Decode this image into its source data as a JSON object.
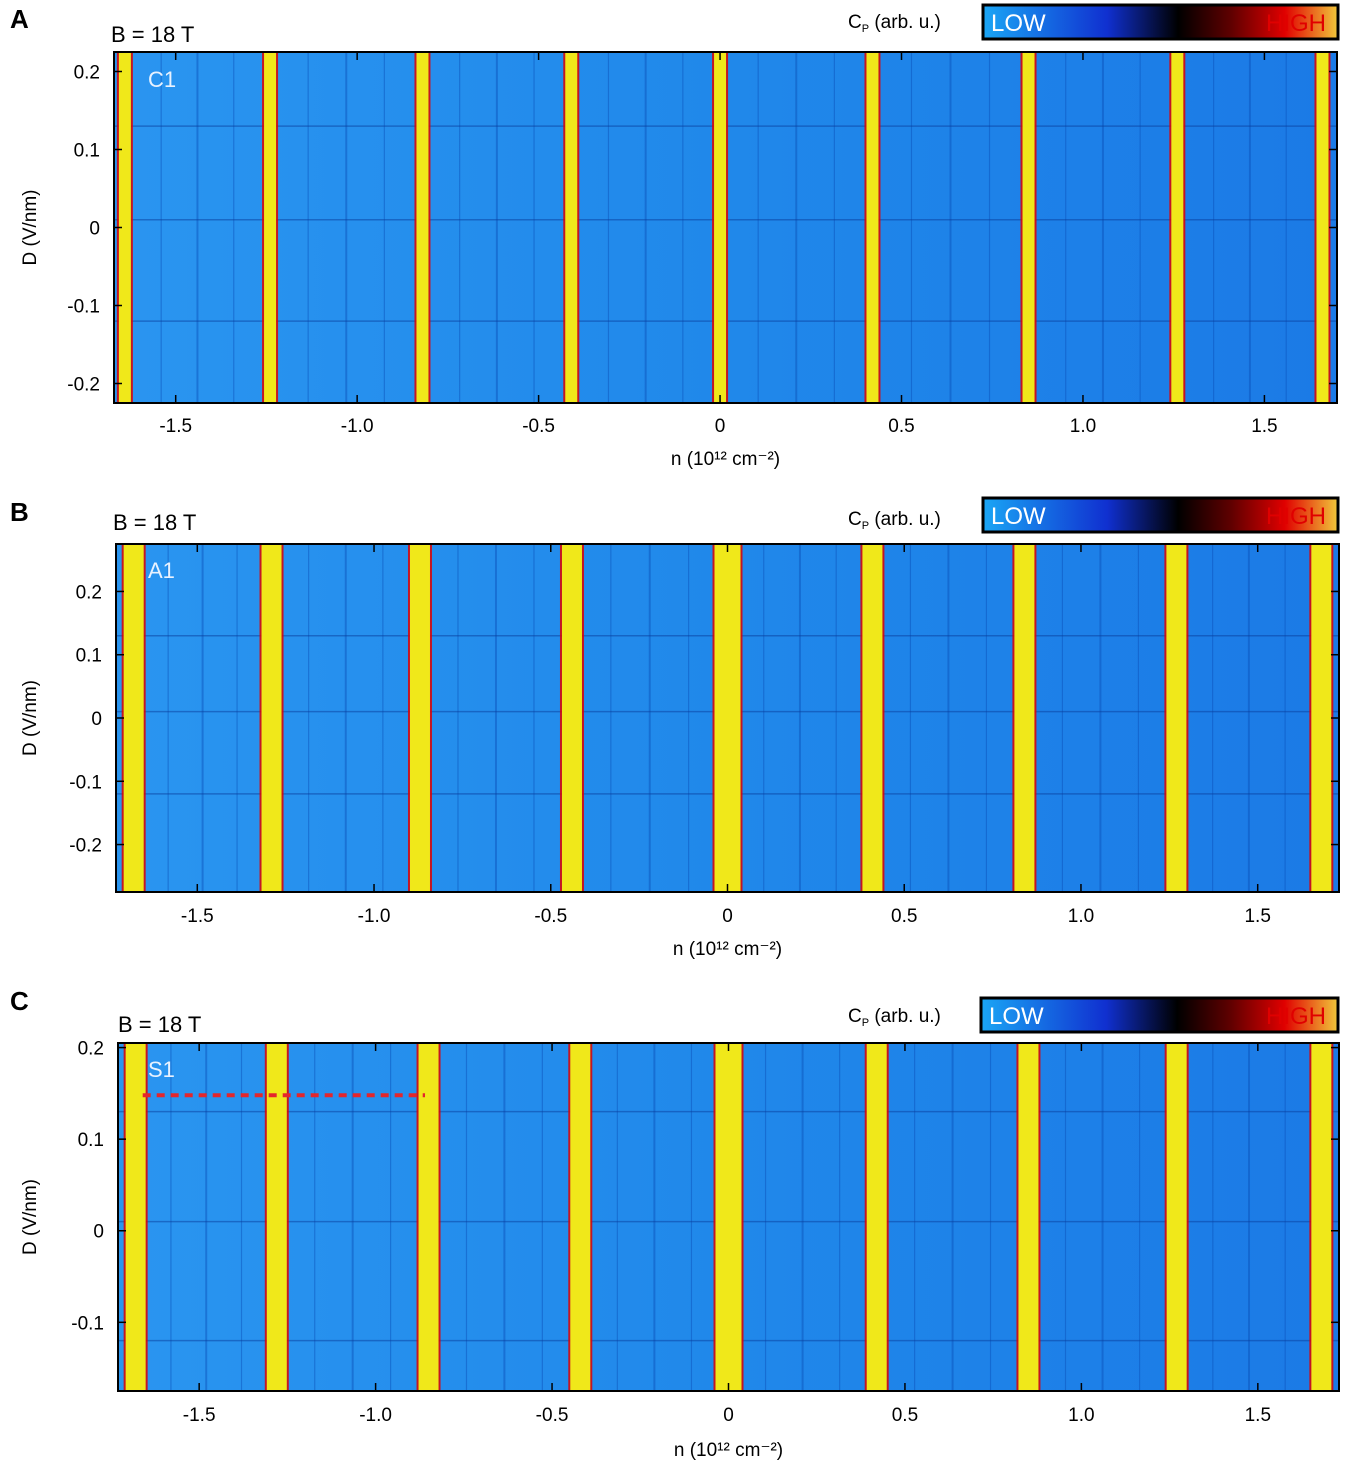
{
  "colors": {
    "background": "#1a7fe8",
    "low": "#1aa6f5",
    "mid": "#000000",
    "red": "#e00000",
    "high": "#f0e81a",
    "marker": "#e4262c"
  },
  "chart_data": [
    {
      "type": "heatmap",
      "panel_label": "A",
      "field_label": "B = 18 T",
      "sample_label": "C1",
      "colorbar": {
        "label_main": "C",
        "label_sub": "P",
        "label_rest": " (arb. u.)",
        "low": "LOW",
        "high": "HIGH"
      },
      "xlabel": "n (10¹² cm⁻²)",
      "ylabel": "D (V/nm)",
      "xlim": [
        -1.67,
        1.7
      ],
      "ylim": [
        -0.225,
        0.225
      ],
      "xticks": [
        -1.5,
        -1.0,
        -0.5,
        0,
        0.5,
        1.0,
        1.5
      ],
      "xtick_labels": [
        "-1.5",
        "-1.0",
        "-0.5",
        "0",
        "0.5",
        "1.0",
        "1.5"
      ],
      "yticks": [
        -0.2,
        -0.1,
        0,
        0.1,
        0.2
      ],
      "ytick_labels": [
        "-0.2",
        "-0.1",
        "0",
        "0.1",
        "0.2"
      ],
      "high_cp_stripes_n": [
        -1.64,
        -1.24,
        -0.82,
        -0.41,
        0.0,
        0.42,
        0.85,
        1.26,
        1.66
      ]
    },
    {
      "type": "heatmap",
      "panel_label": "B",
      "field_label": "B = 18 T",
      "sample_label": "A1",
      "colorbar": {
        "label_main": "C",
        "label_sub": "P",
        "label_rest": " (arb. u.)",
        "low": "LOW",
        "high": "HIGH"
      },
      "xlabel": "n (10¹² cm⁻²)",
      "ylabel": "D (V/nm)",
      "xlim": [
        -1.73,
        1.73
      ],
      "ylim": [
        -0.275,
        0.275
      ],
      "xticks": [
        -1.5,
        -1.0,
        -0.5,
        0,
        0.5,
        1.0,
        1.5
      ],
      "xtick_labels": [
        "-1.5",
        "-1.0",
        "-0.5",
        "0",
        "0.5",
        "1.0",
        "1.5"
      ],
      "yticks": [
        -0.2,
        -0.1,
        0,
        0.1,
        0.2
      ],
      "ytick_labels": [
        "-0.2",
        "-0.1",
        "0",
        "0.1",
        "0.2"
      ],
      "high_cp_stripes_n": [
        -1.68,
        -1.29,
        -0.87,
        -0.44,
        0.0,
        0.41,
        0.84,
        1.27,
        1.68
      ]
    },
    {
      "type": "heatmap",
      "panel_label": "C",
      "field_label": "B = 18 T",
      "sample_label": "S1",
      "colorbar": {
        "label_main": "C",
        "label_sub": "P",
        "label_rest": " (arb. u.)",
        "low": "LOW",
        "high": "HIGH"
      },
      "xlabel": "n (10¹² cm⁻²)",
      "ylabel": "D (V/nm)",
      "xlim": [
        -1.73,
        1.73
      ],
      "ylim": [
        -0.175,
        0.205
      ],
      "xticks": [
        -1.5,
        -1.0,
        -0.5,
        0,
        0.5,
        1.0,
        1.5
      ],
      "xtick_labels": [
        "-1.5",
        "-1.0",
        "-0.5",
        "0",
        "0.5",
        "1.0",
        "1.5"
      ],
      "yticks": [
        -0.1,
        0,
        0.1,
        0.2
      ],
      "ytick_labels": [
        "-0.1",
        "0",
        "0.1",
        "0.2"
      ],
      "high_cp_stripes_n": [
        -1.68,
        -1.28,
        -0.85,
        -0.42,
        0.0,
        0.42,
        0.85,
        1.27,
        1.68
      ],
      "dashed_line": {
        "D": 0.148,
        "n_from": -1.66,
        "n_to": -0.86
      }
    }
  ]
}
